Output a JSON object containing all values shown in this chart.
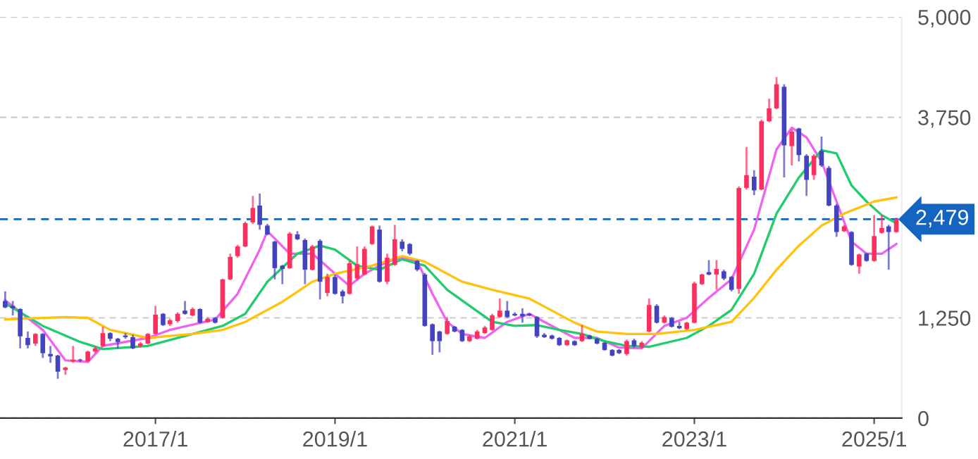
{
  "chart_data": {
    "type": "candlestick",
    "x": [
      "2015-05",
      "2015-06",
      "2015-07",
      "2015-08",
      "2015-09",
      "2015-10",
      "2015-11",
      "2015-12",
      "2016-01",
      "2016-02",
      "2016-03",
      "2016-04",
      "2016-05",
      "2016-06",
      "2016-07",
      "2016-08",
      "2016-09",
      "2016-10",
      "2016-11",
      "2016-12",
      "2017-01",
      "2017-02",
      "2017-03",
      "2017-04",
      "2017-05",
      "2017-06",
      "2017-07",
      "2017-08",
      "2017-09",
      "2017-10",
      "2017-11",
      "2017-12",
      "2018-01",
      "2018-02",
      "2018-03",
      "2018-04",
      "2018-05",
      "2018-06",
      "2018-07",
      "2018-08",
      "2018-09",
      "2018-10",
      "2018-11",
      "2018-12",
      "2019-01",
      "2019-02",
      "2019-03",
      "2019-04",
      "2019-05",
      "2019-06",
      "2019-07",
      "2019-08",
      "2019-09",
      "2019-10",
      "2019-11",
      "2019-12",
      "2020-01",
      "2020-02",
      "2020-03",
      "2020-04",
      "2020-05",
      "2020-06",
      "2020-07",
      "2020-08",
      "2020-09",
      "2020-10",
      "2020-11",
      "2020-12",
      "2021-01",
      "2021-02",
      "2021-03",
      "2021-04",
      "2021-05",
      "2021-06",
      "2021-07",
      "2021-08",
      "2021-09",
      "2021-10",
      "2021-11",
      "2021-12",
      "2022-01",
      "2022-02",
      "2022-03",
      "2022-04",
      "2022-05",
      "2022-06",
      "2022-07",
      "2022-08",
      "2022-09",
      "2022-10",
      "2022-11",
      "2022-12",
      "2023-01",
      "2023-02",
      "2023-03",
      "2023-04",
      "2023-05",
      "2023-06",
      "2023-07",
      "2023-08",
      "2023-09",
      "2023-10",
      "2023-11",
      "2023-12",
      "2024-01",
      "2024-02",
      "2024-03",
      "2024-04",
      "2024-05",
      "2024-06",
      "2024-07",
      "2024-08",
      "2024-09",
      "2024-10",
      "2024-11",
      "2024-12",
      "2025-01",
      "2025-02",
      "2025-03",
      "2025-04"
    ],
    "ohlc": [
      [
        1460,
        1580,
        1370,
        1380
      ],
      [
        1400,
        1460,
        1280,
        1370
      ],
      [
        1360,
        1370,
        870,
        1020
      ],
      [
        1000,
        1080,
        870,
        910
      ],
      [
        930,
        1060,
        900,
        1050
      ],
      [
        1050,
        1060,
        750,
        810
      ],
      [
        800,
        900,
        690,
        770
      ],
      [
        780,
        790,
        490,
        580
      ],
      [
        600,
        640,
        540,
        630
      ],
      [
        710,
        900,
        690,
        730
      ],
      [
        730,
        740,
        700,
        720
      ],
      [
        710,
        840,
        700,
        830
      ],
      [
        830,
        900,
        810,
        870
      ],
      [
        900,
        1140,
        890,
        1060
      ],
      [
        1060,
        1070,
        960,
        990
      ],
      [
        990,
        1000,
        870,
        950
      ],
      [
        1030,
        1060,
        990,
        1010
      ],
      [
        1010,
        1040,
        860,
        870
      ],
      [
        900,
        950,
        880,
        930
      ],
      [
        930,
        1060,
        920,
        1050
      ],
      [
        1050,
        1400,
        1040,
        1290
      ],
      [
        1300,
        1310,
        1150,
        1160
      ],
      [
        1170,
        1240,
        1150,
        1220
      ],
      [
        1210,
        1320,
        1190,
        1300
      ],
      [
        1340,
        1460,
        1290,
        1300
      ],
      [
        1280,
        1380,
        1270,
        1360
      ],
      [
        1360,
        1370,
        1180,
        1190
      ],
      [
        1200,
        1260,
        1190,
        1240
      ],
      [
        1250,
        1260,
        1180,
        1190
      ],
      [
        1250,
        1740,
        1240,
        1730
      ],
      [
        1730,
        2050,
        1720,
        2010
      ],
      [
        2020,
        2160,
        2000,
        2140
      ],
      [
        2140,
        2450,
        2130,
        2430
      ],
      [
        2440,
        2770,
        2420,
        2620
      ],
      [
        2650,
        2800,
        2350,
        2410
      ],
      [
        2400,
        2420,
        2280,
        2290
      ],
      [
        2200,
        2210,
        1730,
        1870
      ],
      [
        1900,
        1910,
        1670,
        1860
      ],
      [
        1870,
        2320,
        1860,
        2300
      ],
      [
        2290,
        2330,
        2220,
        2230
      ],
      [
        2220,
        2240,
        1670,
        1850
      ],
      [
        1850,
        2160,
        1840,
        2140
      ],
      [
        2210,
        2230,
        1480,
        1700
      ],
      [
        1560,
        1800,
        1520,
        1760
      ],
      [
        1760,
        1790,
        1540,
        1550
      ],
      [
        1580,
        1600,
        1430,
        1520
      ],
      [
        1550,
        1960,
        1540,
        1930
      ],
      [
        1740,
        2140,
        1720,
        1920
      ],
      [
        1790,
        2140,
        1780,
        2110
      ],
      [
        2170,
        2400,
        2160,
        2390
      ],
      [
        2350,
        2400,
        1690,
        1700
      ],
      [
        1700,
        2050,
        1670,
        2000
      ],
      [
        1910,
        2410,
        1900,
        2230
      ],
      [
        2200,
        2230,
        2080,
        2110
      ],
      [
        2170,
        2180,
        2030,
        2050
      ],
      [
        1960,
        1970,
        1830,
        1850
      ],
      [
        1790,
        1810,
        1140,
        1150
      ],
      [
        1170,
        1180,
        790,
        960
      ],
      [
        1080,
        1090,
        820,
        960
      ],
      [
        1050,
        1260,
        1040,
        1210
      ],
      [
        1140,
        1150,
        1070,
        1080
      ],
      [
        1100,
        1110,
        950,
        960
      ],
      [
        960,
        1040,
        950,
        1020
      ],
      [
        990,
        1100,
        980,
        1080
      ],
      [
        1060,
        1150,
        1050,
        1130
      ],
      [
        1100,
        1300,
        1090,
        1280
      ],
      [
        1260,
        1490,
        1250,
        1340
      ],
      [
        1340,
        1460,
        1250,
        1260
      ],
      [
        1300,
        1320,
        1270,
        1280
      ],
      [
        1300,
        1370,
        1190,
        1270
      ],
      [
        1300,
        1310,
        1270,
        1280
      ],
      [
        1260,
        1270,
        1000,
        1020
      ],
      [
        1040,
        1060,
        1000,
        1010
      ],
      [
        1030,
        1040,
        980,
        990
      ],
      [
        1000,
        1010,
        900,
        910
      ],
      [
        910,
        980,
        900,
        970
      ],
      [
        960,
        970,
        900,
        910
      ],
      [
        960,
        1160,
        950,
        1050
      ],
      [
        1030,
        1040,
        980,
        990
      ],
      [
        990,
        1000,
        920,
        930
      ],
      [
        940,
        950,
        840,
        850
      ],
      [
        850,
        860,
        770,
        780
      ],
      [
        850,
        860,
        800,
        810
      ],
      [
        800,
        980,
        780,
        960
      ],
      [
        970,
        990,
        880,
        900
      ],
      [
        880,
        960,
        870,
        940
      ],
      [
        1080,
        1490,
        1070,
        1410
      ],
      [
        1400,
        1420,
        1180,
        1190
      ],
      [
        1190,
        1280,
        1180,
        1260
      ],
      [
        1250,
        1260,
        1130,
        1140
      ],
      [
        1150,
        1200,
        1110,
        1120
      ],
      [
        1110,
        1200,
        1100,
        1190
      ],
      [
        1190,
        1700,
        1180,
        1680
      ],
      [
        1670,
        1800,
        1660,
        1790
      ],
      [
        1820,
        1970,
        1780,
        1790
      ],
      [
        1790,
        1970,
        1600,
        1860
      ],
      [
        1830,
        1850,
        1720,
        1740
      ],
      [
        1760,
        1770,
        1580,
        1600
      ],
      [
        1610,
        2890,
        1550,
        2870
      ],
      [
        2870,
        3380,
        2850,
        3030
      ],
      [
        3010,
        3090,
        2780,
        2840
      ],
      [
        2850,
        3720,
        2840,
        3700
      ],
      [
        3700,
        3980,
        3690,
        3860
      ],
      [
        3860,
        4250,
        3850,
        4160
      ],
      [
        4130,
        4160,
        3000,
        3400
      ],
      [
        3390,
        3600,
        3150,
        3570
      ],
      [
        3610,
        3620,
        3200,
        3280
      ],
      [
        3270,
        3290,
        2770,
        2970
      ],
      [
        3030,
        3290,
        2970,
        3270
      ],
      [
        3330,
        3510,
        3130,
        3150
      ],
      [
        3120,
        3140,
        2640,
        2650
      ],
      [
        2650,
        2670,
        2260,
        2320
      ],
      [
        2330,
        2410,
        2320,
        2390
      ],
      [
        2320,
        2330,
        1900,
        1910
      ],
      [
        1890,
        2050,
        1800,
        2040
      ],
      [
        2050,
        2060,
        1950,
        1960
      ],
      [
        1960,
        2530,
        1950,
        2270
      ],
      [
        2310,
        2530,
        2300,
        2370
      ],
      [
        2390,
        2410,
        1850,
        2320
      ],
      [
        2320,
        2500,
        2310,
        2480
      ]
    ],
    "colors": [
      "#4343c0",
      "#4343c0",
      "#4343c0",
      "#4343c0",
      "#fc2f5e",
      "#4343c0",
      "#4343c0",
      "#4343c0",
      "#fc2f5e",
      "#fc2f5e",
      "#4343c0",
      "#fc2f5e",
      "#fc2f5e",
      "#fc2f5e",
      "#4343c0",
      "#4343c0",
      "#4343c0",
      "#4343c0",
      "#fc2f5e",
      "#fc2f5e",
      "#fc2f5e",
      "#4343c0",
      "#fc2f5e",
      "#fc2f5e",
      "#4343c0",
      "#fc2f5e",
      "#4343c0",
      "#fc2f5e",
      "#4343c0",
      "#fc2f5e",
      "#fc2f5e",
      "#fc2f5e",
      "#fc2f5e",
      "#fc2f5e",
      "#4343c0",
      "#4343c0",
      "#4343c0",
      "#4343c0",
      "#fc2f5e",
      "#4343c0",
      "#4343c0",
      "#fc2f5e",
      "#4343c0",
      "#fc2f5e",
      "#4343c0",
      "#4343c0",
      "#fc2f5e",
      "#fc2f5e",
      "#fc2f5e",
      "#fc2f5e",
      "#4343c0",
      "#fc2f5e",
      "#fc2f5e",
      "#4343c0",
      "#4343c0",
      "#4343c0",
      "#4343c0",
      "#4343c0",
      "#4343c0",
      "#fc2f5e",
      "#4343c0",
      "#4343c0",
      "#fc2f5e",
      "#fc2f5e",
      "#fc2f5e",
      "#fc2f5e",
      "#fc2f5e",
      "#4343c0",
      "#4343c0",
      "#4343c0",
      "#4343c0",
      "#4343c0",
      "#4343c0",
      "#4343c0",
      "#4343c0",
      "#fc2f5e",
      "#4343c0",
      "#fc2f5e",
      "#4343c0",
      "#4343c0",
      "#4343c0",
      "#4343c0",
      "#4343c0",
      "#fc2f5e",
      "#4343c0",
      "#fc2f5e",
      "#fc2f5e",
      "#4343c0",
      "#fc2f5e",
      "#4343c0",
      "#4343c0",
      "#fc2f5e",
      "#fc2f5e",
      "#fc2f5e",
      "#4343c0",
      "#fc2f5e",
      "#4343c0",
      "#4343c0",
      "#fc2f5e",
      "#fc2f5e",
      "#4343c0",
      "#fc2f5e",
      "#fc2f5e",
      "#fc2f5e",
      "#4343c0",
      "#fc2f5e",
      "#4343c0",
      "#4343c0",
      "#fc2f5e",
      "#4343c0",
      "#4343c0",
      "#4343c0",
      "#fc2f5e",
      "#4343c0",
      "#fc2f5e",
      "#4343c0",
      "#fc2f5e",
      "#fc2f5e",
      "#4343c0",
      "#fc2f5e"
    ],
    "series": [
      {
        "type": "line",
        "color": "#f062f0",
        "x": [
          "2015-05",
          "2015-10",
          "2016-01",
          "2016-04",
          "2016-06",
          "2016-12",
          "2017-03",
          "2017-09",
          "2017-12",
          "2018-03",
          "2018-04",
          "2018-07",
          "2018-10",
          "2019-01",
          "2019-03",
          "2019-05",
          "2019-08",
          "2019-10",
          "2019-12",
          "2020-02",
          "2020-04",
          "2020-06",
          "2020-09",
          "2020-12",
          "2021-03",
          "2021-06",
          "2021-09",
          "2021-12",
          "2022-03",
          "2022-06",
          "2022-09",
          "2022-12",
          "2023-03",
          "2023-06",
          "2023-09",
          "2023-12",
          "2024-02",
          "2024-04",
          "2024-06",
          "2024-08",
          "2024-10",
          "2024-12",
          "2025-02",
          "2025-04"
        ],
        "values": [
          1470,
          1100,
          720,
          700,
          900,
          1000,
          1100,
          1230,
          1550,
          2100,
          2330,
          2050,
          2050,
          1800,
          1650,
          1800,
          1950,
          2000,
          1960,
          1550,
          1200,
          1050,
          1000,
          1200,
          1300,
          1150,
          1000,
          1000,
          880,
          870,
          1150,
          1250,
          1500,
          1730,
          2350,
          3350,
          3620,
          3500,
          3200,
          2700,
          2200,
          2050,
          2050,
          2170
        ]
      },
      {
        "type": "line",
        "color": "#22cc6e",
        "x": [
          "2015-05",
          "2015-10",
          "2016-03",
          "2016-06",
          "2016-12",
          "2017-06",
          "2017-10",
          "2018-01",
          "2018-04",
          "2018-08",
          "2018-11",
          "2019-01",
          "2019-04",
          "2019-07",
          "2019-10",
          "2020-01",
          "2020-04",
          "2020-07",
          "2020-10",
          "2021-01",
          "2021-04",
          "2021-07",
          "2021-10",
          "2022-01",
          "2022-04",
          "2022-07",
          "2022-12",
          "2023-03",
          "2023-06",
          "2023-09",
          "2023-12",
          "2024-03",
          "2024-06",
          "2024-08",
          "2024-10",
          "2024-12",
          "2025-02",
          "2025-04"
        ],
        "values": [
          1430,
          1150,
          950,
          860,
          900,
          1050,
          1150,
          1300,
          1700,
          2050,
          2150,
          2100,
          1900,
          1850,
          1980,
          1900,
          1600,
          1400,
          1200,
          1150,
          1160,
          1100,
          1050,
          960,
          900,
          890,
          1000,
          1150,
          1350,
          1800,
          2550,
          3000,
          3340,
          3300,
          2900,
          2700,
          2530,
          2430
        ]
      },
      {
        "type": "line",
        "color": "#ffc20e",
        "x": [
          "2015-05",
          "2016-01",
          "2016-04",
          "2016-07",
          "2016-12",
          "2017-06",
          "2017-10",
          "2018-01",
          "2018-06",
          "2018-10",
          "2019-01",
          "2019-06",
          "2019-10",
          "2020-01",
          "2020-06",
          "2020-10",
          "2021-03",
          "2021-09",
          "2021-12",
          "2022-04",
          "2022-08",
          "2023-01",
          "2023-06",
          "2023-09",
          "2023-12",
          "2024-03",
          "2024-06",
          "2024-09",
          "2025-01",
          "2025-04"
        ],
        "values": [
          1230,
          1260,
          1250,
          1100,
          1000,
          1050,
          1100,
          1200,
          1450,
          1700,
          1800,
          1900,
          2020,
          1950,
          1700,
          1600,
          1490,
          1190,
          1080,
          1050,
          1050,
          1100,
          1200,
          1500,
          1850,
          2150,
          2400,
          2550,
          2700,
          2750
        ]
      }
    ],
    "ref_lines": [
      {
        "axis": "y",
        "value": 2479,
        "label": "2,479",
        "color": "#1565c0",
        "line_style": "dashed"
      }
    ],
    "xlim": [
      "2015-04-10",
      "2025-04-23"
    ],
    "xticks": [
      {
        "value": "2017-01",
        "label": "2017/1"
      },
      {
        "value": "2019-01",
        "label": "2019/1"
      },
      {
        "value": "2021-01",
        "label": "2021/1"
      },
      {
        "value": "2023-01",
        "label": "2023/1"
      },
      {
        "value": "2025-01",
        "label": "2025/1"
      }
    ],
    "ylim": [
      0,
      5000
    ],
    "yticks": [
      0,
      {
        "value": 1250,
        "label": "1,250"
      },
      {
        "value": 3750,
        "label": "3,750"
      },
      {
        "value": 5000,
        "label": "5,000"
      }
    ],
    "grid": "y"
  }
}
